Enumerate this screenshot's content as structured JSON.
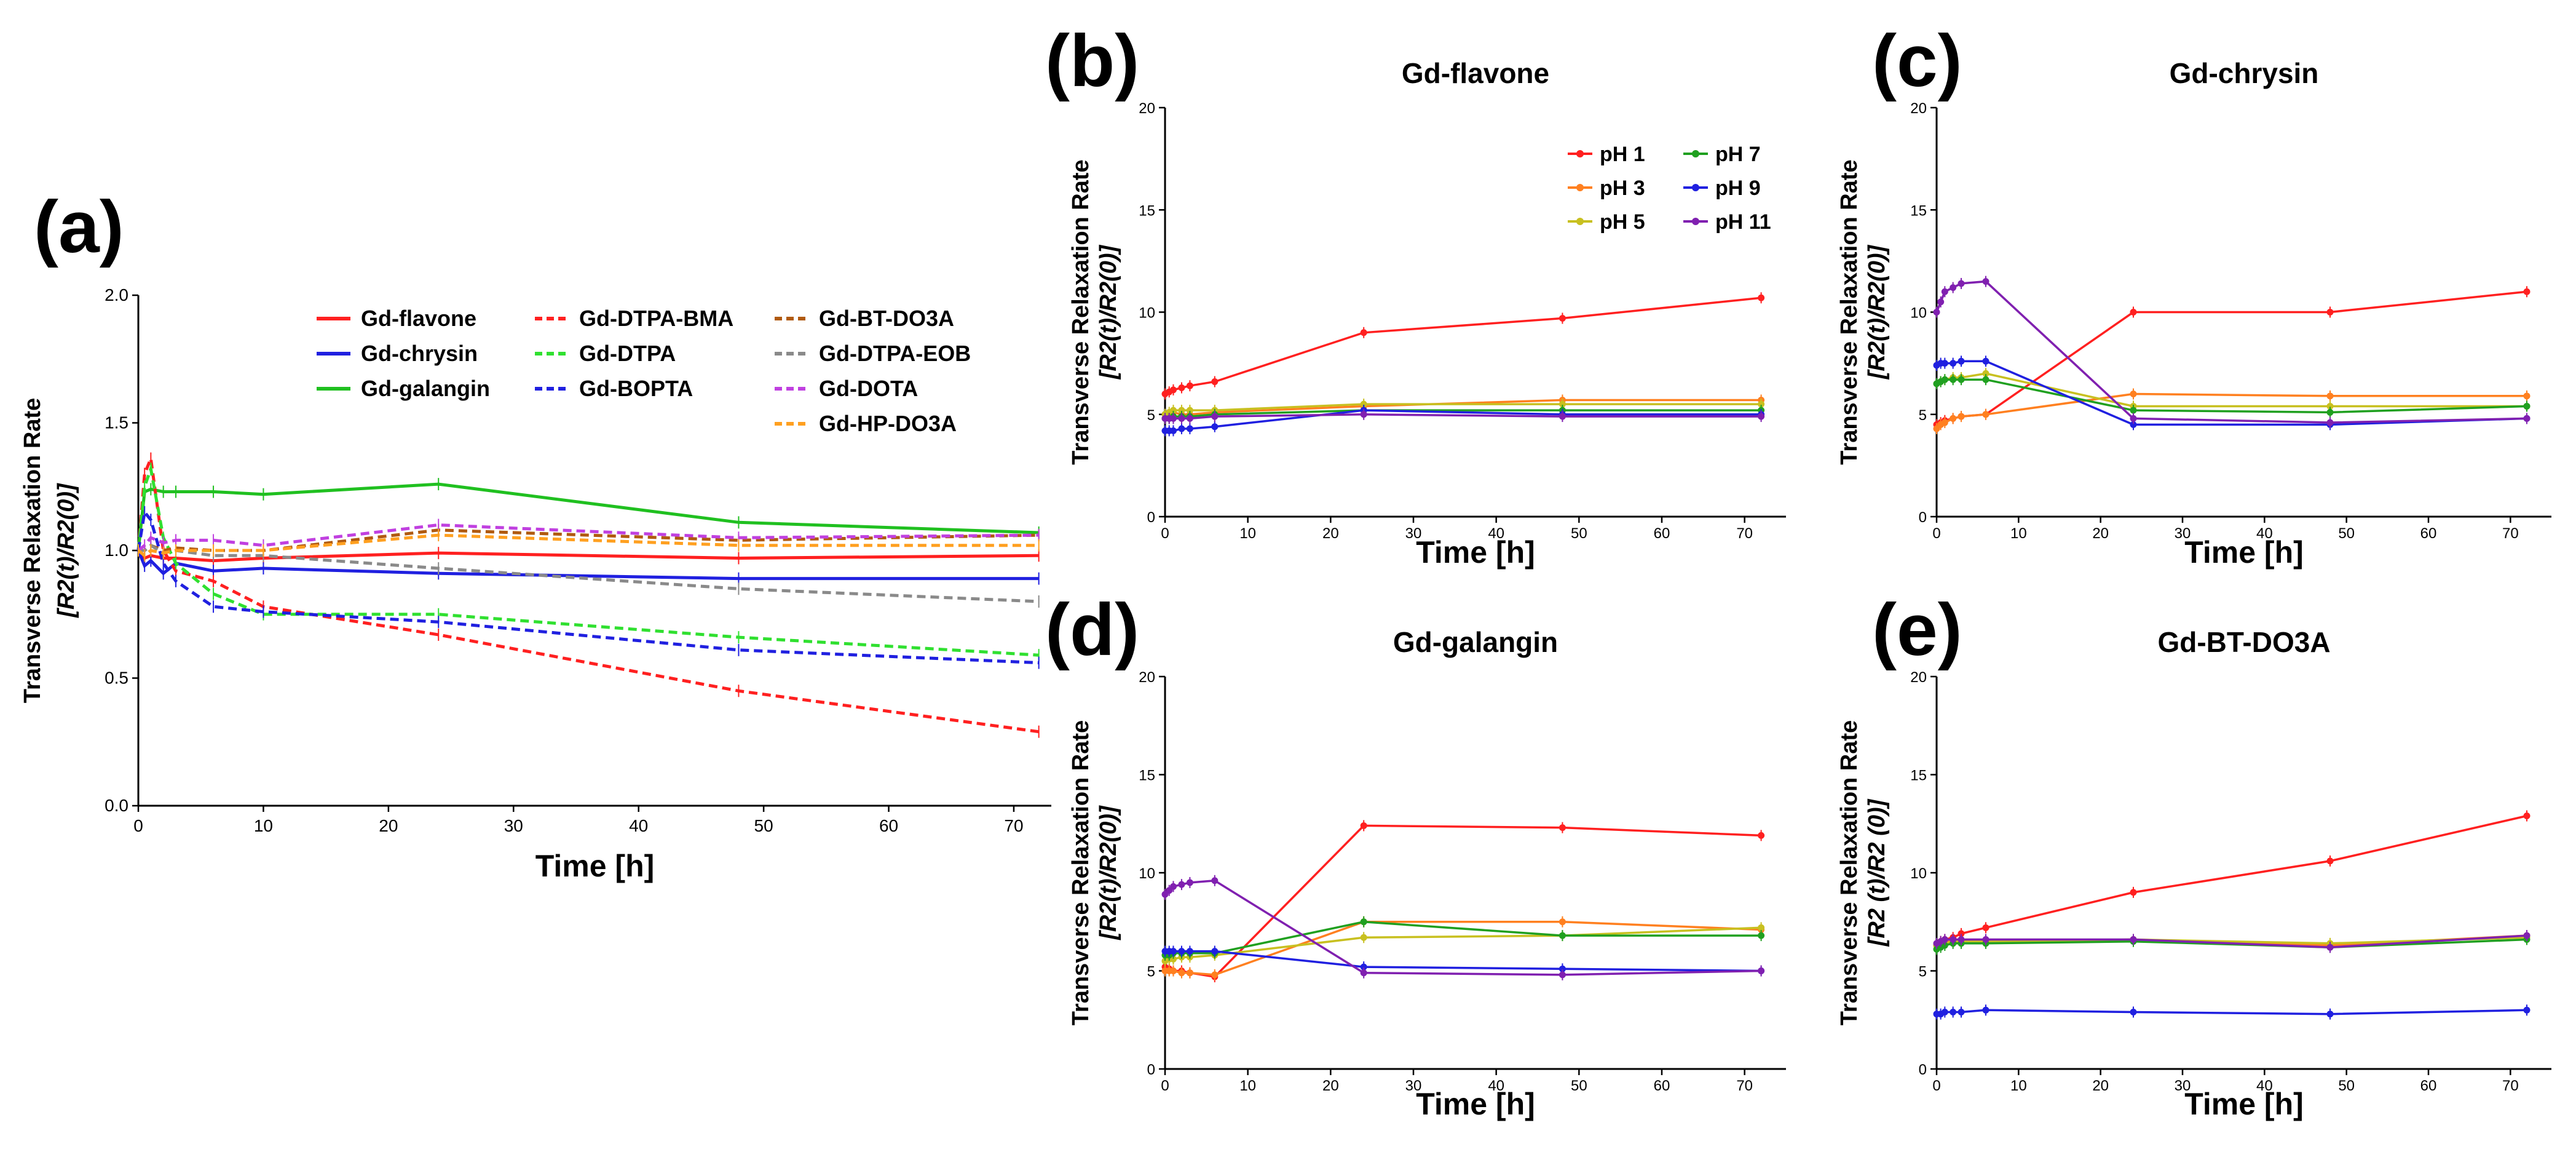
{
  "chart_data": [
    {
      "panel": "(a)",
      "type": "line",
      "title": "",
      "xlabel": "Time [h]",
      "ylabel_line1": "Transverse Relaxation Rate",
      "ylabel_line2": "[R2(t)/R2(0)]",
      "xlim": [
        0,
        73
      ],
      "ylim": [
        0,
        2.0
      ],
      "xticks": [
        "0",
        "10",
        "20",
        "30",
        "40",
        "50",
        "60",
        "70"
      ],
      "yticks": [
        "0.0",
        "0.5",
        "1.0",
        "1.5",
        "2.0"
      ],
      "x": [
        0,
        0.5,
        1,
        2,
        3,
        6,
        10,
        24,
        48,
        72
      ],
      "series": [
        {
          "name": "Gd-flavone",
          "color": "#ff2020",
          "dashed": false,
          "values": [
            1.0,
            0.97,
            0.98,
            0.97,
            0.97,
            0.96,
            0.97,
            0.99,
            0.97,
            0.98
          ]
        },
        {
          "name": "Gd-chrysin",
          "color": "#2020e0",
          "dashed": false,
          "values": [
            1.0,
            0.94,
            0.96,
            0.91,
            0.95,
            0.92,
            0.93,
            0.91,
            0.89,
            0.89
          ]
        },
        {
          "name": "Gd-galangin",
          "color": "#20c020",
          "dashed": false,
          "values": [
            1.0,
            1.23,
            1.24,
            1.23,
            1.23,
            1.23,
            1.22,
            1.26,
            1.11,
            1.07
          ]
        },
        {
          "name": "Gd-DTPA-BMA",
          "color": "#ff2020",
          "dashed": true,
          "values": [
            1.0,
            1.3,
            1.36,
            1.0,
            0.92,
            0.88,
            0.78,
            0.67,
            0.45,
            0.29
          ]
        },
        {
          "name": "Gd-DTPA",
          "color": "#30e030",
          "dashed": true,
          "values": [
            1.0,
            1.25,
            1.32,
            1.05,
            0.95,
            0.83,
            0.75,
            0.75,
            0.66,
            0.59
          ]
        },
        {
          "name": "Gd-BOPTA",
          "color": "#2020e0",
          "dashed": true,
          "values": [
            1.0,
            1.15,
            1.12,
            0.95,
            0.88,
            0.78,
            0.76,
            0.72,
            0.61,
            0.56
          ]
        },
        {
          "name": "Gd-BT-DO3A",
          "color": "#b05a10",
          "dashed": true,
          "values": [
            1.0,
            1.0,
            1.02,
            1.0,
            1.01,
            1.0,
            1.0,
            1.08,
            1.04,
            1.06
          ]
        },
        {
          "name": "Gd-DTPA-EOB",
          "color": "#8a8a8a",
          "dashed": true,
          "values": [
            1.0,
            1.0,
            1.02,
            0.99,
            1.0,
            0.98,
            0.98,
            0.93,
            0.85,
            0.8
          ]
        },
        {
          "name": "Gd-DOTA",
          "color": "#c040e0",
          "dashed": true,
          "values": [
            1.0,
            1.02,
            1.05,
            1.03,
            1.04,
            1.04,
            1.02,
            1.1,
            1.05,
            1.06
          ]
        },
        {
          "name": "Gd-HP-DO3A",
          "color": "#ffa020",
          "dashed": true,
          "values": [
            1.0,
            0.98,
            1.0,
            0.99,
            1.0,
            1.0,
            1.0,
            1.06,
            1.02,
            1.02
          ]
        }
      ]
    },
    {
      "panel": "(b)",
      "type": "line",
      "title": "Gd-flavone",
      "xlabel": "Time [h]",
      "ylabel_line1": "Transverse Relaxation Rate",
      "ylabel_line2": "[R2(t)/R2(0)]",
      "xlim": [
        0,
        75
      ],
      "ylim": [
        0,
        20
      ],
      "xticks": [
        "0",
        "10",
        "20",
        "30",
        "40",
        "50",
        "60",
        "70"
      ],
      "yticks": [
        "0",
        "5",
        "10",
        "15",
        "20"
      ],
      "x": [
        0,
        0.5,
        1,
        2,
        3,
        6,
        24,
        48,
        72
      ],
      "series": [
        {
          "name": "pH 1",
          "color": "#ff2020",
          "values": [
            6.0,
            6.1,
            6.2,
            6.3,
            6.4,
            6.6,
            9.0,
            9.7,
            10.7
          ]
        },
        {
          "name": "pH 3",
          "color": "#ff8020",
          "values": [
            5.0,
            5.0,
            5.1,
            5.0,
            5.0,
            5.1,
            5.4,
            5.7,
            5.7
          ]
        },
        {
          "name": "pH 5",
          "color": "#c8c020",
          "values": [
            5.0,
            5.1,
            5.2,
            5.2,
            5.2,
            5.2,
            5.5,
            5.5,
            5.5
          ]
        },
        {
          "name": "pH 7",
          "color": "#20a020",
          "values": [
            4.8,
            4.8,
            4.9,
            4.9,
            4.9,
            5.0,
            5.2,
            5.2,
            5.2
          ]
        },
        {
          "name": "pH 9",
          "color": "#2020e0",
          "values": [
            4.2,
            4.2,
            4.2,
            4.3,
            4.3,
            4.4,
            5.2,
            5.0,
            5.0
          ]
        },
        {
          "name": "pH 11",
          "color": "#8020b0",
          "values": [
            4.8,
            4.8,
            4.8,
            4.8,
            4.8,
            4.9,
            5.0,
            4.9,
            4.9
          ]
        }
      ]
    },
    {
      "panel": "(c)",
      "type": "line",
      "title": "Gd-chrysin",
      "xlabel": "Time [h]",
      "ylabel_line1": "Transverse Relaxation Rate",
      "ylabel_line2": "[R2(t)/R2(0)]",
      "xlim": [
        0,
        75
      ],
      "ylim": [
        0,
        20
      ],
      "xticks": [
        "0",
        "10",
        "20",
        "30",
        "40",
        "50",
        "60",
        "70"
      ],
      "yticks": [
        "0",
        "5",
        "10",
        "15",
        "20"
      ],
      "x": [
        0,
        0.5,
        1,
        2,
        3,
        6,
        24,
        48,
        72
      ],
      "series": [
        {
          "name": "pH 1",
          "color": "#ff2020",
          "values": [
            4.5,
            4.6,
            4.7,
            4.8,
            4.9,
            5.0,
            10.0,
            10.0,
            11.0
          ]
        },
        {
          "name": "pH 3",
          "color": "#ff8020",
          "values": [
            4.3,
            4.5,
            4.6,
            4.8,
            4.9,
            5.0,
            6.0,
            5.9,
            5.9
          ]
        },
        {
          "name": "pH 5",
          "color": "#c8c020",
          "values": [
            6.5,
            6.6,
            6.7,
            6.8,
            6.8,
            7.0,
            5.4,
            5.4,
            5.4
          ]
        },
        {
          "name": "pH 7",
          "color": "#20a020",
          "values": [
            6.5,
            6.6,
            6.7,
            6.7,
            6.7,
            6.7,
            5.2,
            5.1,
            5.4
          ]
        },
        {
          "name": "pH 9",
          "color": "#2020e0",
          "values": [
            7.4,
            7.5,
            7.5,
            7.5,
            7.6,
            7.6,
            4.5,
            4.5,
            4.8
          ]
        },
        {
          "name": "pH 11",
          "color": "#8020b0",
          "values": [
            10.0,
            10.5,
            11.0,
            11.2,
            11.4,
            11.5,
            4.8,
            4.6,
            4.8
          ]
        }
      ]
    },
    {
      "panel": "(d)",
      "type": "line",
      "title": "Gd-galangin",
      "xlabel": "Time [h]",
      "ylabel_line1": "Transverse Relaxation Rate",
      "ylabel_line2": "[R2(t)/R2(0)]",
      "xlim": [
        0,
        75
      ],
      "ylim": [
        0,
        20
      ],
      "xticks": [
        "0",
        "10",
        "20",
        "30",
        "40",
        "50",
        "60",
        "70"
      ],
      "yticks": [
        "0",
        "5",
        "10",
        "15",
        "20"
      ],
      "x": [
        0,
        0.5,
        1,
        2,
        3,
        6,
        24,
        48,
        72
      ],
      "series": [
        {
          "name": "pH 1",
          "color": "#ff2020",
          "values": [
            5.2,
            5.1,
            5.0,
            5.0,
            4.9,
            4.7,
            12.4,
            12.3,
            11.9
          ]
        },
        {
          "name": "pH 3",
          "color": "#ff8020",
          "values": [
            5.0,
            5.0,
            5.0,
            4.9,
            4.9,
            4.8,
            7.5,
            7.5,
            7.1
          ]
        },
        {
          "name": "pH 5",
          "color": "#c8c020",
          "values": [
            5.5,
            5.6,
            5.6,
            5.7,
            5.7,
            5.8,
            6.7,
            6.8,
            7.2
          ]
        },
        {
          "name": "pH 7",
          "color": "#20a020",
          "values": [
            5.8,
            5.8,
            5.9,
            5.9,
            5.9,
            5.9,
            7.5,
            6.8,
            6.8
          ]
        },
        {
          "name": "pH 9",
          "color": "#2020e0",
          "values": [
            6.0,
            6.0,
            6.0,
            6.0,
            6.0,
            6.0,
            5.2,
            5.1,
            5.0
          ]
        },
        {
          "name": "pH 11",
          "color": "#8020b0",
          "values": [
            8.9,
            9.1,
            9.3,
            9.4,
            9.5,
            9.6,
            4.9,
            4.8,
            5.0
          ]
        }
      ]
    },
    {
      "panel": "(e)",
      "type": "line",
      "title": "Gd-BT-DO3A",
      "xlabel": "Time [h]",
      "ylabel_line1": "Transverse Relaxation Rate",
      "ylabel_line2": "[R2 (t)/R2 (0)]",
      "xlim": [
        0,
        75
      ],
      "ylim": [
        0,
        20
      ],
      "xticks": [
        "0",
        "10",
        "20",
        "30",
        "40",
        "50",
        "60",
        "70"
      ],
      "yticks": [
        "0",
        "5",
        "10",
        "15",
        "20"
      ],
      "x": [
        0,
        0.5,
        1,
        2,
        3,
        6,
        24,
        48,
        72
      ],
      "series": [
        {
          "name": "pH 1",
          "color": "#ff2020",
          "values": [
            6.3,
            6.5,
            6.6,
            6.7,
            6.9,
            7.2,
            9.0,
            10.6,
            12.9
          ]
        },
        {
          "name": "pH 3",
          "color": "#ff8020",
          "values": [
            6.3,
            6.4,
            6.5,
            6.5,
            6.5,
            6.5,
            6.6,
            6.3,
            6.8
          ]
        },
        {
          "name": "pH 5",
          "color": "#c8c020",
          "values": [
            6.3,
            6.4,
            6.4,
            6.5,
            6.5,
            6.5,
            6.6,
            6.4,
            6.7
          ]
        },
        {
          "name": "pH 7",
          "color": "#20a020",
          "values": [
            6.1,
            6.2,
            6.3,
            6.4,
            6.4,
            6.4,
            6.5,
            6.2,
            6.6
          ]
        },
        {
          "name": "pH 9",
          "color": "#2020e0",
          "values": [
            2.8,
            2.8,
            2.9,
            2.9,
            2.9,
            3.0,
            2.9,
            2.8,
            3.0
          ]
        },
        {
          "name": "pH 11",
          "color": "#8020b0",
          "values": [
            6.4,
            6.5,
            6.6,
            6.6,
            6.6,
            6.6,
            6.6,
            6.2,
            6.8
          ]
        }
      ]
    }
  ]
}
